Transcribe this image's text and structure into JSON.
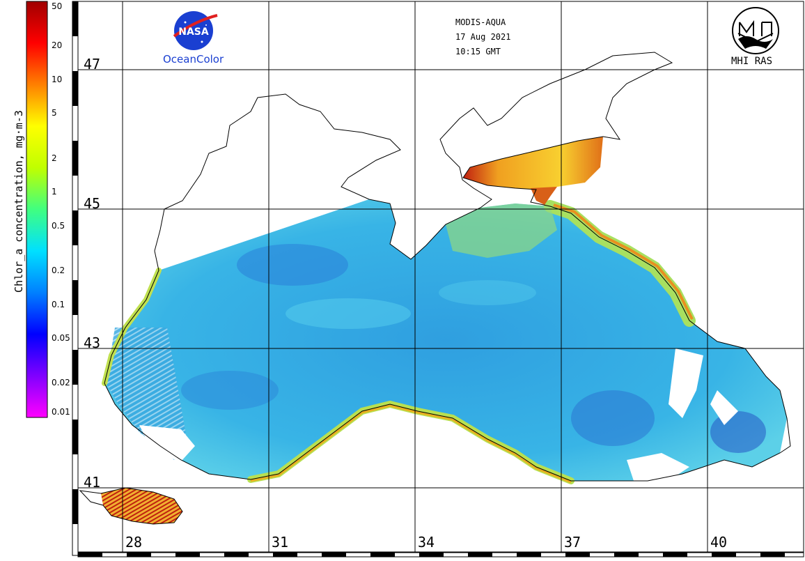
{
  "header": {
    "sensor": "MODIS-AQUA",
    "date": "17 Aug 2021",
    "time": "10:15 GMT"
  },
  "logos": {
    "nasa": "NASA",
    "oceancolor": "OceanColor",
    "mhi": "MHI RAS"
  },
  "colorbar": {
    "title": "Chlor_a concentration, mg·m-3",
    "ticks": [
      "50",
      "20",
      "10",
      "5",
      "2",
      "1",
      "0.5",
      "0.2",
      "0.1",
      "0.05",
      "0.02",
      "0.01"
    ],
    "scale": "log",
    "range": [
      0.01,
      50
    ],
    "colors": [
      "#ff00ff",
      "#8000ff",
      "#0000ff",
      "#0080ff",
      "#00e0ff",
      "#40ff80",
      "#c0ff00",
      "#ffff00",
      "#ff8000",
      "#ff0000",
      "#a00000"
    ]
  },
  "grid": {
    "latitudes": [
      "47",
      "45",
      "43",
      "41"
    ],
    "longitudes": [
      "28",
      "31",
      "34",
      "37",
      "40"
    ]
  },
  "palette": {
    "open_sea": "#33aadd",
    "deep_blue": "#2266cc",
    "coastal_green": "#aee05a",
    "coastal_yellow": "#f0d020",
    "coastal_red": "#d83010",
    "azov": "#e8a020"
  }
}
